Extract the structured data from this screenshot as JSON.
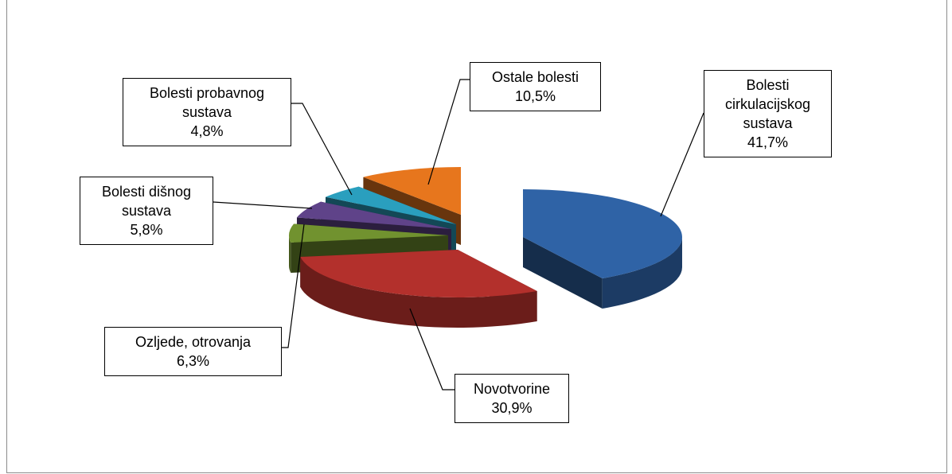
{
  "chart_data": {
    "type": "pie",
    "categories": [
      "Bolesti cirkulacijskog sustava",
      "Novotvorine",
      "Ozljede, otrovanja",
      "Bolesti dišnog sustava",
      "Bolesti probavnog sustava",
      "Ostale bolesti"
    ],
    "values": [
      41.7,
      30.9,
      6.3,
      5.8,
      4.8,
      10.5
    ],
    "value_labels": [
      "41,7%",
      "30,9%",
      "6,3%",
      "5,8%",
      "4,8%",
      "10,5%"
    ],
    "colors": [
      "#2f63a6",
      "#b3302c",
      "#71922f",
      "#5f4389",
      "#2a9fbe",
      "#e7761d"
    ]
  }
}
